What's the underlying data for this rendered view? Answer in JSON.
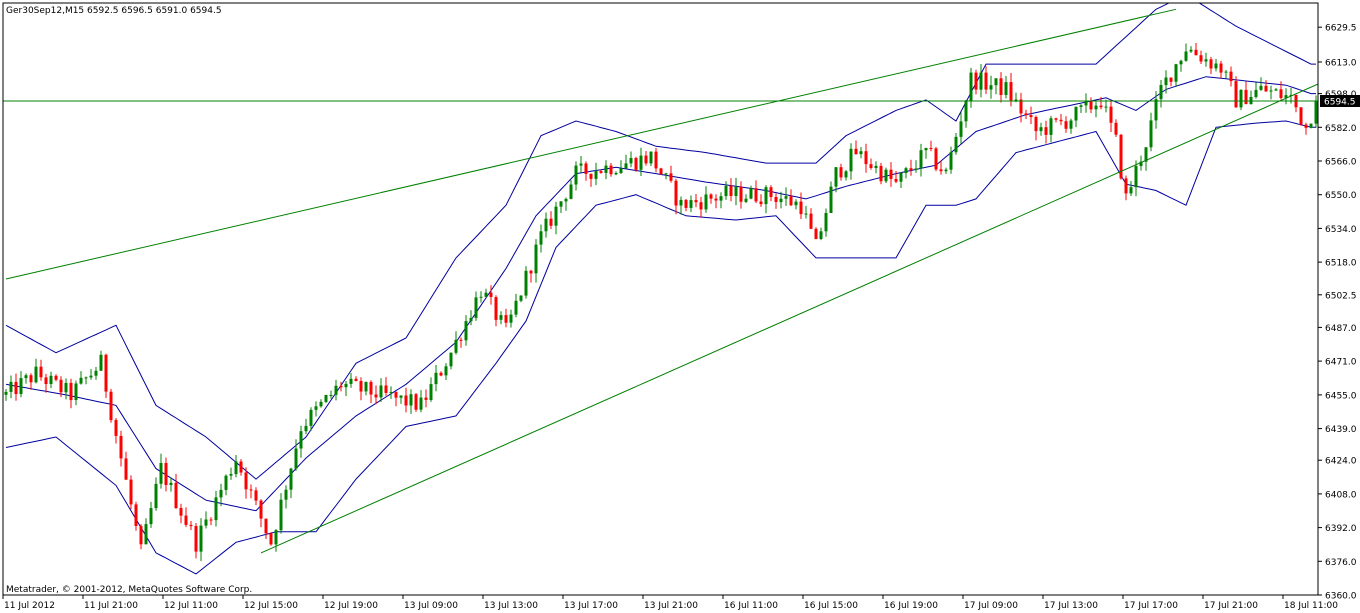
{
  "header": {
    "symbol_line": "Ger30Sep12,M15  6592.5 6596.5 6591.0 6594.5"
  },
  "footer": {
    "copyright": "Metatrader, © 2001-2012, MetaQuotes Software Corp."
  },
  "colors": {
    "background": "#ffffff",
    "frame": "#000000",
    "bull_candle": "#008000",
    "bear_candle": "#ff0000",
    "bands": "#0000a0",
    "trendlines": "#008000",
    "price_line": "#008000",
    "price_tag_bg": "#000000"
  },
  "chart_data": {
    "type": "candlestick",
    "grid": false,
    "y_axis_side": "right",
    "ylim": [
      6360,
      6641
    ],
    "yticks": [
      6629.5,
      6613.0,
      6598.0,
      6582.0,
      6566.0,
      6550.0,
      6534.0,
      6518.0,
      6502.5,
      6487.0,
      6471.0,
      6455.0,
      6439.0,
      6424.0,
      6408.0,
      6392.0,
      6376.0,
      6360.0
    ],
    "ytick_labels": [
      "6629.5",
      "6613.0",
      "6598.0",
      "6582.0",
      "6566.0",
      "6550.0",
      "6534.0",
      "6518.0",
      "6502.5",
      "6487.0",
      "6471.0",
      "6455.0",
      "6439.0",
      "6424.0",
      "6408.0",
      "6392.0",
      "6376.0",
      "6360.0"
    ],
    "xtick_labels": [
      "11 Jul 2012",
      "11 Jul 21:00",
      "12 Jul 11:00",
      "12 Jul 15:00",
      "12 Jul 19:00",
      "13 Jul 09:00",
      "13 Jul 13:00",
      "13 Jul 17:00",
      "13 Jul 21:00",
      "16 Jul 11:00",
      "16 Jul 15:00",
      "16 Jul 19:00",
      "17 Jul 09:00",
      "17 Jul 13:00",
      "17 Jul 17:00",
      "17 Jul 21:00",
      "18 Jul 11:00"
    ],
    "xtick_bar_index": [
      0,
      16,
      32,
      48,
      64,
      80,
      96,
      112,
      128,
      144,
      160,
      176,
      192,
      208,
      224,
      240,
      256
    ],
    "bar_count": 263,
    "current_price": 6594.5,
    "current_price_label": "6594.5",
    "ohlc_anchors": [
      [
        0,
        6455
      ],
      [
        6,
        6465
      ],
      [
        13,
        6455
      ],
      [
        19,
        6470
      ],
      [
        23,
        6425
      ],
      [
        27,
        6380
      ],
      [
        31,
        6420
      ],
      [
        38,
        6385
      ],
      [
        46,
        6425
      ],
      [
        53,
        6385
      ],
      [
        59,
        6440
      ],
      [
        67,
        6460
      ],
      [
        75,
        6455
      ],
      [
        83,
        6450
      ],
      [
        89,
        6475
      ],
      [
        95,
        6505
      ],
      [
        100,
        6485
      ],
      [
        107,
        6530
      ],
      [
        114,
        6560
      ],
      [
        124,
        6565
      ],
      [
        129,
        6568
      ],
      [
        135,
        6545
      ],
      [
        144,
        6550
      ],
      [
        153,
        6550
      ],
      [
        159,
        6545
      ],
      [
        162,
        6525
      ],
      [
        166,
        6560
      ],
      [
        170,
        6570
      ],
      [
        178,
        6555
      ],
      [
        184,
        6570
      ],
      [
        188,
        6560
      ],
      [
        193,
        6605
      ],
      [
        200,
        6600
      ],
      [
        206,
        6580
      ],
      [
        212,
        6585
      ],
      [
        219,
        6595
      ],
      [
        222,
        6575
      ],
      [
        224,
        6548
      ],
      [
        228,
        6575
      ],
      [
        231,
        6600
      ],
      [
        236,
        6620
      ],
      [
        243,
        6610
      ],
      [
        246,
        6595
      ],
      [
        251,
        6600
      ],
      [
        257,
        6596
      ],
      [
        260,
        6582
      ],
      [
        262,
        6594.5
      ]
    ],
    "upper_band_anchors": [
      [
        0,
        6488
      ],
      [
        10,
        6475
      ],
      [
        22,
        6488
      ],
      [
        30,
        6450
      ],
      [
        40,
        6435
      ],
      [
        50,
        6415
      ],
      [
        60,
        6435
      ],
      [
        70,
        6470
      ],
      [
        80,
        6482
      ],
      [
        90,
        6520
      ],
      [
        100,
        6545
      ],
      [
        107,
        6578
      ],
      [
        114,
        6585
      ],
      [
        122,
        6580
      ],
      [
        130,
        6573
      ],
      [
        140,
        6570
      ],
      [
        152,
        6565
      ],
      [
        162,
        6565
      ],
      [
        168,
        6578
      ],
      [
        178,
        6590
      ],
      [
        184,
        6595
      ],
      [
        190,
        6585
      ],
      [
        196,
        6612
      ],
      [
        204,
        6612
      ],
      [
        210,
        6612
      ],
      [
        218,
        6612
      ],
      [
        224,
        6625
      ],
      [
        230,
        6638
      ],
      [
        236,
        6645
      ],
      [
        246,
        6630
      ],
      [
        256,
        6618
      ],
      [
        261,
        6612
      ]
    ],
    "middle_band_anchors": [
      [
        0,
        6460
      ],
      [
        12,
        6455
      ],
      [
        22,
        6450
      ],
      [
        30,
        6420
      ],
      [
        40,
        6405
      ],
      [
        50,
        6400
      ],
      [
        60,
        6425
      ],
      [
        70,
        6445
      ],
      [
        80,
        6460
      ],
      [
        90,
        6480
      ],
      [
        100,
        6515
      ],
      [
        106,
        6540
      ],
      [
        114,
        6560
      ],
      [
        122,
        6563
      ],
      [
        130,
        6560
      ],
      [
        140,
        6556
      ],
      [
        152,
        6552
      ],
      [
        160,
        6548
      ],
      [
        168,
        6554
      ],
      [
        178,
        6560
      ],
      [
        186,
        6564
      ],
      [
        194,
        6580
      ],
      [
        204,
        6588
      ],
      [
        212,
        6592
      ],
      [
        220,
        6596
      ],
      [
        226,
        6590
      ],
      [
        232,
        6600
      ],
      [
        240,
        6606
      ],
      [
        248,
        6604
      ],
      [
        256,
        6602
      ],
      [
        261,
        6598
      ]
    ],
    "lower_band_anchors": [
      [
        0,
        6430
      ],
      [
        10,
        6435
      ],
      [
        22,
        6412
      ],
      [
        30,
        6380
      ],
      [
        38,
        6370
      ],
      [
        46,
        6385
      ],
      [
        54,
        6390
      ],
      [
        62,
        6390
      ],
      [
        70,
        6415
      ],
      [
        80,
        6440
      ],
      [
        90,
        6445
      ],
      [
        98,
        6470
      ],
      [
        104,
        6490
      ],
      [
        110,
        6525
      ],
      [
        118,
        6545
      ],
      [
        126,
        6550
      ],
      [
        136,
        6540
      ],
      [
        146,
        6538
      ],
      [
        154,
        6540
      ],
      [
        162,
        6520
      ],
      [
        170,
        6520
      ],
      [
        178,
        6520
      ],
      [
        184,
        6545
      ],
      [
        190,
        6545
      ],
      [
        194,
        6548
      ],
      [
        202,
        6570
      ],
      [
        210,
        6575
      ],
      [
        218,
        6580
      ],
      [
        224,
        6555
      ],
      [
        230,
        6552
      ],
      [
        236,
        6545
      ],
      [
        242,
        6582
      ],
      [
        250,
        6584
      ],
      [
        256,
        6585
      ],
      [
        261,
        6582
      ]
    ],
    "trendlines": [
      {
        "from": [
          0,
          6510
        ],
        "to": [
          234,
          6638
        ]
      },
      {
        "from": [
          51,
          6380
        ],
        "to": [
          298,
          6640
        ]
      }
    ]
  }
}
